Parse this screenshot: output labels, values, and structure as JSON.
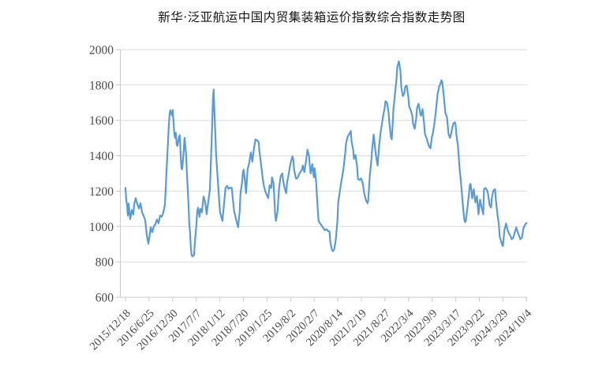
{
  "title": "新华·泛亚航运中国内贸集装箱运价指数综合指数走势图",
  "colors": {
    "line": "#5B9BD5",
    "grid": "#DBDBDB",
    "axis": "#C9C9C9",
    "tick_label": "#4a4a4a",
    "title_text": "#141414",
    "background": "#ffffff"
  },
  "chart_data": {
    "type": "line",
    "title": "新华·泛亚航运中国内贸集装箱运价指数综合指数走势图",
    "series_name": "综合指数",
    "xlabel": "",
    "ylabel": "",
    "legend": "none",
    "grid": "horizontal",
    "ylim": [
      600,
      2000
    ],
    "y_ticks": [
      600,
      800,
      1000,
      1200,
      1400,
      1600,
      1800,
      2000
    ],
    "x_tick_labels": [
      "2015/12/18",
      "2016/6/25",
      "2016/12/30",
      "2017/7/7",
      "2018/1/12",
      "2018/7/20",
      "2019/1/25",
      "2019/8/2",
      "2020/2/7",
      "2020/8/14",
      "2021/2/19",
      "2021/8/27",
      "2022/3/4",
      "2022/9/9",
      "2023/3/17",
      "2023/9/22",
      "2024/3/29",
      "2024/10/4"
    ],
    "x_range_note": "weekly index values; t = uniform time index 0-509 spanning 2015/12/18 to 2024/10/4",
    "points": [
      [
        0,
        1218
      ],
      [
        1,
        1150
      ],
      [
        2,
        1122
      ],
      [
        3,
        1062
      ],
      [
        4,
        1130
      ],
      [
        5,
        1085
      ],
      [
        6,
        1042
      ],
      [
        8,
        1093
      ],
      [
        10,
        1068
      ],
      [
        11,
        1126
      ],
      [
        13,
        1160
      ],
      [
        15,
        1127
      ],
      [
        17,
        1102
      ],
      [
        19,
        1132
      ],
      [
        21,
        1082
      ],
      [
        23,
        1060
      ],
      [
        25,
        1036
      ],
      [
        27,
        952
      ],
      [
        29,
        903
      ],
      [
        31,
        962
      ],
      [
        32,
        996
      ],
      [
        34,
        968
      ],
      [
        36,
        1002
      ],
      [
        38,
        1013
      ],
      [
        40,
        1040
      ],
      [
        42,
        1018
      ],
      [
        44,
        1062
      ],
      [
        46,
        1055
      ],
      [
        48,
        1077
      ],
      [
        50,
        1122
      ],
      [
        51,
        1204
      ],
      [
        52,
        1300
      ],
      [
        53,
        1390
      ],
      [
        54,
        1478
      ],
      [
        55,
        1567
      ],
      [
        56,
        1634
      ],
      [
        57,
        1657
      ],
      [
        59,
        1628
      ],
      [
        60,
        1660
      ],
      [
        61,
        1590
      ],
      [
        62,
        1523
      ],
      [
        63,
        1501
      ],
      [
        64,
        1530
      ],
      [
        65,
        1464
      ],
      [
        66,
        1456
      ],
      [
        68,
        1508
      ],
      [
        69,
        1516
      ],
      [
        70,
        1412
      ],
      [
        71,
        1330
      ],
      [
        72,
        1323
      ],
      [
        74,
        1434
      ],
      [
        75,
        1501
      ],
      [
        77,
        1404
      ],
      [
        78,
        1300
      ],
      [
        79,
        1211
      ],
      [
        80,
        1129
      ],
      [
        81,
        1010
      ],
      [
        82,
        965
      ],
      [
        83,
        876
      ],
      [
        84,
        839
      ],
      [
        85,
        831
      ],
      [
        87,
        839
      ],
      [
        88,
        906
      ],
      [
        90,
        1010
      ],
      [
        91,
        1084
      ],
      [
        92,
        1107
      ],
      [
        94,
        1055
      ],
      [
        95,
        1100
      ],
      [
        97,
        1080
      ],
      [
        99,
        1170
      ],
      [
        101,
        1140
      ],
      [
        103,
        1069
      ],
      [
        105,
        1140
      ],
      [
        107,
        1204
      ],
      [
        108,
        1315
      ],
      [
        109,
        1449
      ],
      [
        110,
        1567
      ],
      [
        111,
        1716
      ],
      [
        112,
        1775
      ],
      [
        113,
        1640
      ],
      [
        114,
        1538
      ],
      [
        115,
        1412
      ],
      [
        117,
        1278
      ],
      [
        119,
        1144
      ],
      [
        120,
        1084
      ],
      [
        122,
        1047
      ],
      [
        123,
        1032
      ],
      [
        125,
        1120
      ],
      [
        127,
        1218
      ],
      [
        129,
        1230
      ],
      [
        131,
        1212
      ],
      [
        133,
        1220
      ],
      [
        135,
        1218
      ],
      [
        136,
        1166
      ],
      [
        138,
        1084
      ],
      [
        140,
        1050
      ],
      [
        142,
        1010
      ],
      [
        143,
        996
      ],
      [
        145,
        1090
      ],
      [
        146,
        1188
      ],
      [
        148,
        1250
      ],
      [
        149,
        1307
      ],
      [
        150,
        1322
      ],
      [
        152,
        1244
      ],
      [
        153,
        1188
      ],
      [
        155,
        1323
      ],
      [
        157,
        1360
      ],
      [
        159,
        1419
      ],
      [
        161,
        1367
      ],
      [
        163,
        1440
      ],
      [
        165,
        1493
      ],
      [
        167,
        1486
      ],
      [
        169,
        1478
      ],
      [
        170,
        1426
      ],
      [
        172,
        1352
      ],
      [
        174,
        1278
      ],
      [
        175,
        1244
      ],
      [
        177,
        1204
      ],
      [
        179,
        1181
      ],
      [
        181,
        1160
      ],
      [
        183,
        1233
      ],
      [
        185,
        1218
      ],
      [
        186,
        1278
      ],
      [
        188,
        1244
      ],
      [
        190,
        1069
      ],
      [
        191,
        1032
      ],
      [
        193,
        1084
      ],
      [
        195,
        1218
      ],
      [
        197,
        1285
      ],
      [
        199,
        1300
      ],
      [
        200,
        1263
      ],
      [
        202,
        1218
      ],
      [
        204,
        1188
      ],
      [
        205,
        1244
      ],
      [
        207,
        1293
      ],
      [
        209,
        1345
      ],
      [
        210,
        1367
      ],
      [
        212,
        1397
      ],
      [
        213,
        1380
      ],
      [
        214,
        1323
      ],
      [
        216,
        1278
      ],
      [
        217,
        1270
      ],
      [
        219,
        1280
      ],
      [
        220,
        1293
      ],
      [
        222,
        1308
      ],
      [
        224,
        1323
      ],
      [
        225,
        1345
      ],
      [
        227,
        1308
      ],
      [
        229,
        1367
      ],
      [
        231,
        1434
      ],
      [
        233,
        1397
      ],
      [
        234,
        1338
      ],
      [
        235,
        1300
      ],
      [
        237,
        1353
      ],
      [
        239,
        1278
      ],
      [
        240,
        1330
      ],
      [
        242,
        1251
      ],
      [
        243,
        1166
      ],
      [
        245,
        1032
      ],
      [
        247,
        1017
      ],
      [
        249,
        1005
      ],
      [
        251,
        992
      ],
      [
        253,
        980
      ],
      [
        255,
        985
      ],
      [
        257,
        975
      ],
      [
        259,
        972
      ],
      [
        260,
        913
      ],
      [
        262,
        869
      ],
      [
        263,
        861
      ],
      [
        264,
        864
      ],
      [
        265,
        872
      ],
      [
        267,
        928
      ],
      [
        269,
        1032
      ],
      [
        270,
        1136
      ],
      [
        272,
        1196
      ],
      [
        274,
        1256
      ],
      [
        275,
        1278
      ],
      [
        277,
        1338
      ],
      [
        279,
        1419
      ],
      [
        280,
        1471
      ],
      [
        282,
        1508
      ],
      [
        284,
        1523
      ],
      [
        286,
        1540
      ],
      [
        287,
        1478
      ],
      [
        289,
        1434
      ],
      [
        290,
        1382
      ],
      [
        292,
        1404
      ],
      [
        294,
        1338
      ],
      [
        295,
        1270
      ],
      [
        297,
        1263
      ],
      [
        299,
        1272
      ],
      [
        301,
        1248
      ],
      [
        303,
        1188
      ],
      [
        305,
        1152
      ],
      [
        307,
        1132
      ],
      [
        308,
        1145
      ],
      [
        310,
        1285
      ],
      [
        312,
        1374
      ],
      [
        313,
        1434
      ],
      [
        315,
        1520
      ],
      [
        317,
        1434
      ],
      [
        318,
        1397
      ],
      [
        320,
        1345
      ],
      [
        322,
        1464
      ],
      [
        324,
        1540
      ],
      [
        325,
        1567
      ],
      [
        327,
        1627
      ],
      [
        329,
        1671
      ],
      [
        330,
        1709
      ],
      [
        332,
        1700
      ],
      [
        334,
        1642
      ],
      [
        335,
        1582
      ],
      [
        337,
        1501
      ],
      [
        338,
        1493
      ],
      [
        339,
        1567
      ],
      [
        340,
        1657
      ],
      [
        342,
        1746
      ],
      [
        344,
        1835
      ],
      [
        345,
        1902
      ],
      [
        347,
        1935
      ],
      [
        349,
        1880
      ],
      [
        350,
        1790
      ],
      [
        352,
        1738
      ],
      [
        354,
        1753
      ],
      [
        355,
        1790
      ],
      [
        357,
        1797
      ],
      [
        359,
        1731
      ],
      [
        360,
        1679
      ],
      [
        362,
        1657
      ],
      [
        364,
        1627
      ],
      [
        365,
        1582
      ],
      [
        367,
        1553
      ],
      [
        369,
        1612
      ],
      [
        370,
        1671
      ],
      [
        372,
        1694
      ],
      [
        374,
        1642
      ],
      [
        375,
        1627
      ],
      [
        377,
        1664
      ],
      [
        379,
        1582
      ],
      [
        380,
        1523
      ],
      [
        382,
        1501
      ],
      [
        384,
        1471
      ],
      [
        385,
        1456
      ],
      [
        387,
        1442
      ],
      [
        389,
        1510
      ],
      [
        390,
        1523
      ],
      [
        392,
        1582
      ],
      [
        394,
        1657
      ],
      [
        396,
        1746
      ],
      [
        398,
        1790
      ],
      [
        400,
        1810
      ],
      [
        401,
        1827
      ],
      [
        402,
        1820
      ],
      [
        404,
        1738
      ],
      [
        406,
        1642
      ],
      [
        408,
        1620
      ],
      [
        410,
        1523
      ],
      [
        412,
        1501
      ],
      [
        414,
        1540
      ],
      [
        416,
        1582
      ],
      [
        418,
        1590
      ],
      [
        419,
        1575
      ],
      [
        420,
        1520
      ],
      [
        422,
        1455
      ],
      [
        424,
        1330
      ],
      [
        426,
        1240
      ],
      [
        428,
        1130
      ],
      [
        430,
        1040
      ],
      [
        431,
        1025
      ],
      [
        432,
        1032
      ],
      [
        434,
        1107
      ],
      [
        436,
        1188
      ],
      [
        437,
        1233
      ],
      [
        438,
        1241
      ],
      [
        440,
        1159
      ],
      [
        442,
        1211
      ],
      [
        444,
        1136
      ],
      [
        446,
        1173
      ],
      [
        448,
        1069
      ],
      [
        450,
        1152
      ],
      [
        452,
        1107
      ],
      [
        454,
        1069
      ],
      [
        455,
        1211
      ],
      [
        457,
        1218
      ],
      [
        459,
        1204
      ],
      [
        460,
        1188
      ],
      [
        462,
        1122
      ],
      [
        464,
        1107
      ],
      [
        465,
        1166
      ],
      [
        467,
        1204
      ],
      [
        469,
        1211
      ],
      [
        470,
        1152
      ],
      [
        472,
        1069
      ],
      [
        474,
        1010
      ],
      [
        475,
        943
      ],
      [
        477,
        913
      ],
      [
        478,
        898
      ],
      [
        479,
        890
      ],
      [
        481,
        980
      ],
      [
        483,
        1017
      ],
      [
        485,
        980
      ],
      [
        487,
        958
      ],
      [
        489,
        943
      ],
      [
        490,
        928
      ],
      [
        492,
        935
      ],
      [
        494,
        965
      ],
      [
        496,
        995
      ],
      [
        498,
        965
      ],
      [
        500,
        943
      ],
      [
        501,
        928
      ],
      [
        503,
        935
      ],
      [
        505,
        988
      ],
      [
        507,
        1010
      ],
      [
        509,
        1020
      ]
    ]
  }
}
